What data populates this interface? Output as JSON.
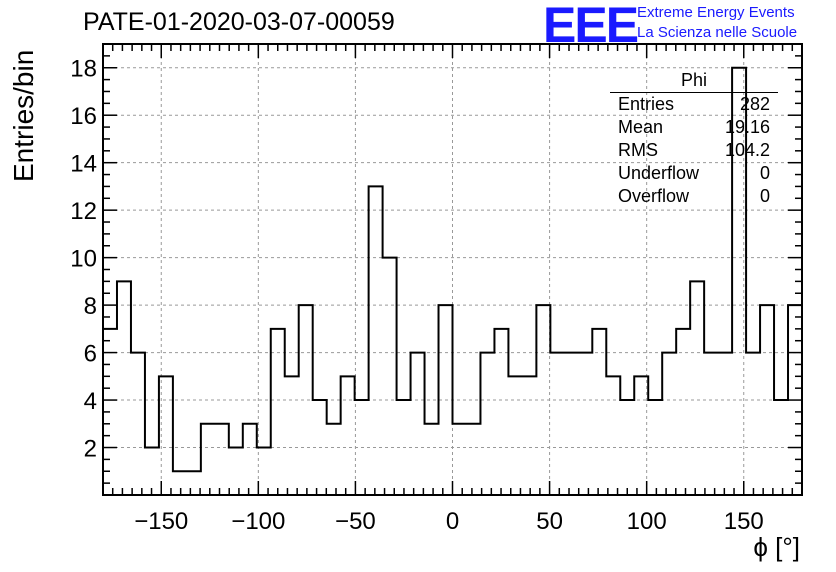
{
  "header": {
    "title": "PATE-01-2020-03-07-00059",
    "logo": "EEE",
    "logo_line1": "Extreme Energy Events",
    "logo_line2": "La Scienza nelle Scuole"
  },
  "stats_box": {
    "name": "Phi",
    "rows": [
      {
        "label": "Entries",
        "value": "282"
      },
      {
        "label": "Mean",
        "value": "19.16"
      },
      {
        "label": "RMS",
        "value": "104.2"
      },
      {
        "label": "Underflow",
        "value": "0"
      },
      {
        "label": "Overflow",
        "value": "0"
      }
    ]
  },
  "chart_data": {
    "type": "bar",
    "title": "PATE-01-2020-03-07-00059",
    "xlabel": "ϕ [°]",
    "ylabel": "Entries/bin",
    "xlim": [
      -180,
      180
    ],
    "ylim": [
      0,
      19
    ],
    "bin_width": 7.2,
    "bin_edges_start": -180,
    "values": [
      7,
      9,
      6,
      2,
      5,
      1,
      1,
      3,
      3,
      2,
      3,
      2,
      7,
      5,
      8,
      4,
      3,
      5,
      4,
      13,
      10,
      4,
      6,
      3,
      8,
      3,
      3,
      6,
      7,
      5,
      5,
      8,
      6,
      6,
      6,
      7,
      5,
      4,
      5,
      4,
      6,
      7,
      9,
      6,
      6,
      18,
      6,
      8,
      4,
      8
    ],
    "x_ticks": [
      -150,
      -100,
      -50,
      0,
      50,
      100,
      150
    ],
    "x_tick_labels": [
      "−150",
      "−100",
      "−50",
      "0",
      "50",
      "100",
      "150"
    ],
    "y_ticks": [
      2,
      4,
      6,
      8,
      10,
      12,
      14,
      16,
      18
    ],
    "y_tick_labels": [
      "2",
      "4",
      "6",
      "8",
      "10",
      "12",
      "14",
      "16",
      "18"
    ],
    "grid": true,
    "legend": "top-right"
  }
}
